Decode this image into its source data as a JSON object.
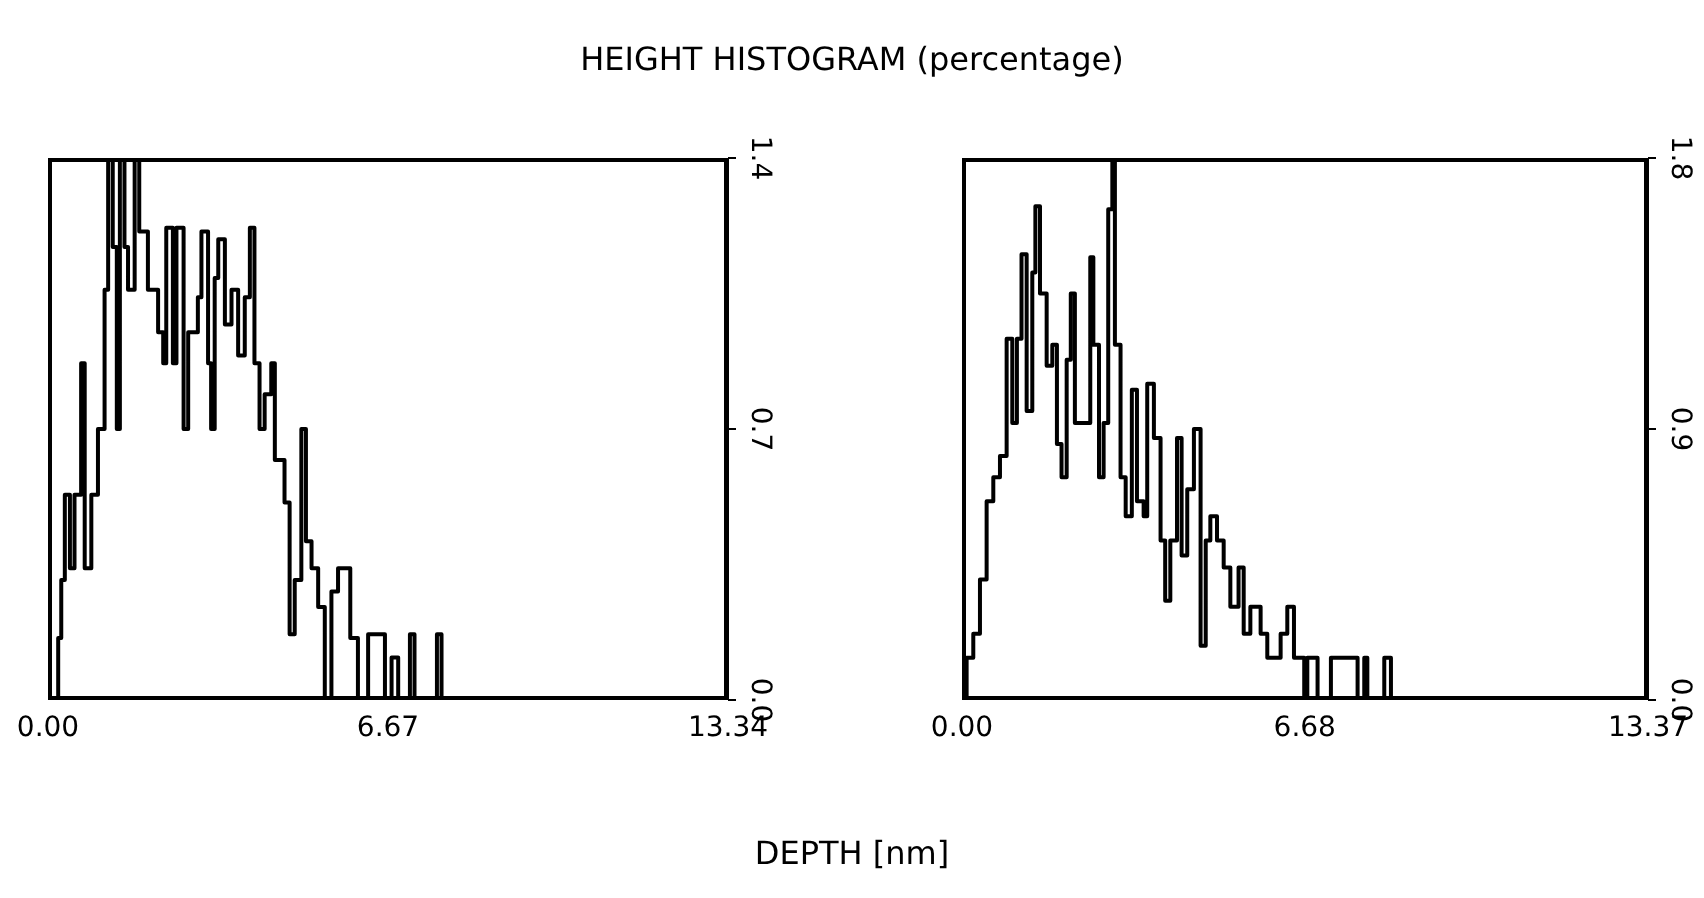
{
  "chart_data": [
    {
      "type": "step",
      "title": "HEIGHT HISTOGRAM (percentage)",
      "xlabel": "DEPTH [nm]",
      "x": [
        0,
        0.2,
        0.26,
        0.33,
        0.43,
        0.52,
        0.56,
        0.65,
        0.72,
        0.85,
        0.98,
        1.11,
        1.18,
        1.27,
        1.35,
        1.41,
        1.5,
        1.57,
        1.7,
        1.79,
        1.96,
        2.16,
        2.26,
        2.32,
        2.45,
        2.52,
        2.66,
        2.75,
        2.94,
        3.01,
        3.14,
        3.2,
        3.27,
        3.34,
        3.47,
        3.6,
        3.73,
        3.86,
        3.96,
        4.05,
        4.15,
        4.25,
        4.38,
        4.45,
        4.58,
        4.64,
        4.74,
        4.84,
        4.97,
        5.06,
        5.17,
        5.3,
        5.43,
        5.56,
        5.69,
        5.82,
        5.93,
        6.08,
        6.28,
        6.54,
        6.61,
        6.74,
        6.87,
        7.1,
        7.19,
        7.63,
        7.72
      ],
      "series": [
        {
          "color": "#000000",
          "values": [
            0,
            0.16,
            0.31,
            0.53,
            0.34,
            0.53,
            0.53,
            0.87,
            0.34,
            0.53,
            0.7,
            1.06,
            1.4,
            1.17,
            0.7,
            1.4,
            1.17,
            1.06,
            1.4,
            1.21,
            1.06,
            0.95,
            0.87,
            1.22,
            0.87,
            1.22,
            0.7,
            0.95,
            1.04,
            1.21,
            0.87,
            0.7,
            1.09,
            1.19,
            0.97,
            1.06,
            0.89,
            1.04,
            1.22,
            0.87,
            0.7,
            0.79,
            0.87,
            0.62,
            0.62,
            0.51,
            0.17,
            0.31,
            0.7,
            0.41,
            0.34,
            0.24,
            0,
            0.28,
            0.34,
            0.34,
            0.16,
            0,
            0.17,
            0.17,
            0,
            0.11,
            0,
            0.17,
            0,
            0.17,
            0
          ]
        }
      ],
      "xlim": [
        0,
        13.34
      ],
      "xticks": [
        {
          "value": 0,
          "label": "0.00"
        },
        6.67,
        13.34
      ],
      "ylim": [
        0,
        1.4
      ],
      "yticks": [
        {
          "value": 0,
          "label": "0.0"
        },
        0.7,
        1.4
      ]
    },
    {
      "type": "step",
      "x": [
        0,
        0.09,
        0.22,
        0.35,
        0.48,
        0.61,
        0.74,
        0.87,
        0.98,
        1.07,
        1.16,
        1.26,
        1.37,
        1.43,
        1.52,
        1.65,
        1.76,
        1.85,
        1.94,
        2.04,
        2.12,
        2.2,
        2.37,
        2.5,
        2.56,
        2.67,
        2.76,
        2.85,
        2.93,
        2.98,
        3.09,
        3.19,
        3.31,
        3.41,
        3.54,
        3.61,
        3.74,
        3.87,
        3.96,
        4.06,
        4.19,
        4.28,
        4.39,
        4.52,
        4.65,
        4.75,
        4.84,
        4.97,
        5.1,
        5.23,
        5.39,
        5.49,
        5.62,
        5.82,
        5.95,
        6.21,
        6.34,
        6.47,
        6.6,
        6.67,
        6.73,
        6.93,
        6.99,
        7.19,
        7.58,
        7.71,
        7.84,
        7.9,
        8.23,
        8.36
      ],
      "series": [
        {
          "color": "#000000",
          "values": [
            0,
            0.14,
            0.22,
            0.4,
            0.66,
            0.74,
            0.81,
            1.2,
            0.92,
            1.2,
            1.48,
            0.96,
            1.42,
            1.64,
            1.35,
            1.11,
            1.18,
            0.85,
            0.74,
            1.13,
            1.35,
            0.92,
            0.92,
            1.47,
            1.18,
            0.74,
            0.92,
            1.63,
            1.8,
            1.18,
            0.74,
            0.61,
            1.03,
            0.66,
            0.61,
            1.05,
            0.87,
            0.53,
            0.33,
            0.53,
            0.87,
            0.48,
            0.7,
            0.9,
            0.18,
            0.53,
            0.61,
            0.53,
            0.44,
            0.31,
            0.44,
            0.22,
            0.31,
            0.22,
            0.14,
            0.22,
            0.31,
            0.14,
            0.14,
            0,
            0.14,
            0,
            0,
            0.14,
            0.14,
            0,
            0.14,
            0,
            0.14,
            0
          ]
        }
      ],
      "xlim": [
        0,
        13.37
      ],
      "xticks": [
        {
          "value": 0,
          "label": "0.00"
        },
        6.68,
        13.37
      ],
      "ylim": [
        0,
        1.8
      ],
      "yticks": [
        {
          "value": 0,
          "label": "0.0"
        },
        0.9,
        1.8
      ]
    }
  ]
}
